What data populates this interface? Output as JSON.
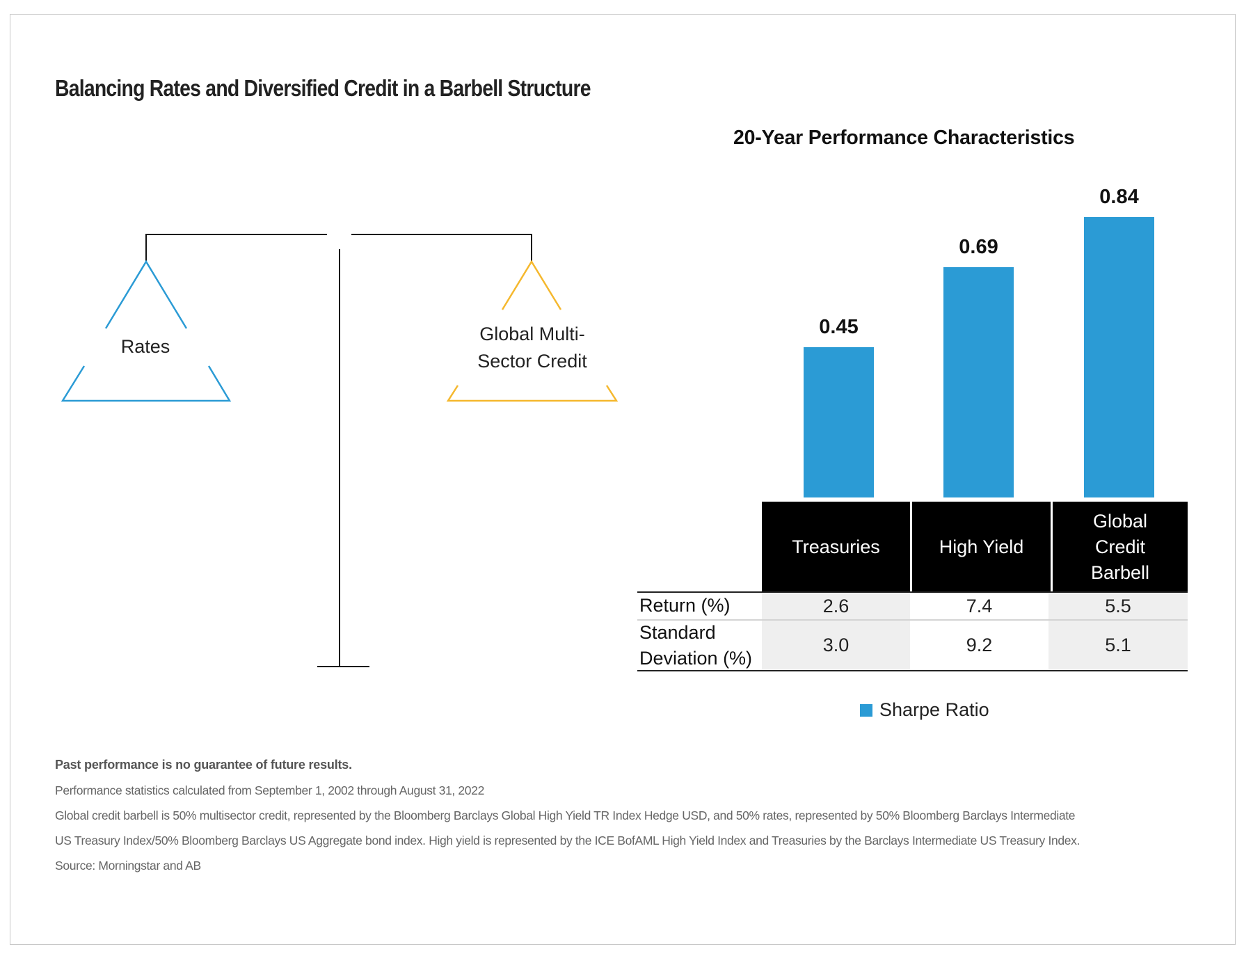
{
  "title": "Balancing Rates and Diversified Credit in a Barbell Structure",
  "diagram": {
    "left_pan_label": "Rates",
    "right_pan_label_lines": [
      "Global Multi-",
      "Sector Credit"
    ],
    "colors": {
      "rates": "#2b9bd5",
      "credit": "#f5b82e",
      "frame": "#111111"
    }
  },
  "chart_data": {
    "type": "bar",
    "title": "20-Year Performance Characteristics",
    "categories": [
      "Treasuries",
      "High Yield",
      "Global Credit Barbell"
    ],
    "category_label_lines": [
      [
        "Treasuries"
      ],
      [
        "High Yield"
      ],
      [
        "Global",
        "Credit",
        "Barbell"
      ]
    ],
    "series": [
      {
        "name": "Sharpe Ratio",
        "values": [
          0.45,
          0.69,
          0.84
        ],
        "labels": [
          "0.45",
          "0.69",
          "0.84"
        ],
        "color": "#2b9bd5"
      }
    ],
    "ylim": [
      0,
      0.9
    ],
    "grid": false,
    "legend": "bottom-center",
    "xlabel": "",
    "ylabel": ""
  },
  "table": {
    "rows": [
      {
        "label": "Return (%)",
        "label_lines": [
          "Return (%)"
        ],
        "values": [
          "2.6",
          "7.4",
          "5.5"
        ]
      },
      {
        "label": "Standard Deviation (%)",
        "label_lines": [
          "Standard",
          "Deviation (%)"
        ],
        "values": [
          "3.0",
          "9.2",
          "5.1"
        ]
      }
    ]
  },
  "legend": {
    "label": "Sharpe Ratio"
  },
  "notes": {
    "disclaimer": "Past performance is no guarantee of future results.",
    "period": "Performance statistics calculated from September 1, 2002 through August 31, 2022",
    "definition_line1": "Global credit barbell is 50% multisector credit, represented by the Bloomberg Barclays Global High Yield TR Index Hedge USD, and 50% rates, represented by 50% Bloomberg Barclays Intermediate",
    "definition_line2": "US Treasury Index/50% Bloomberg Barclays US Aggregate bond index. High yield is represented by the ICE BofAML High Yield Index and Treasuries by the Barclays Intermediate US Treasury Index.",
    "source": "Source: Morningstar and AB"
  }
}
